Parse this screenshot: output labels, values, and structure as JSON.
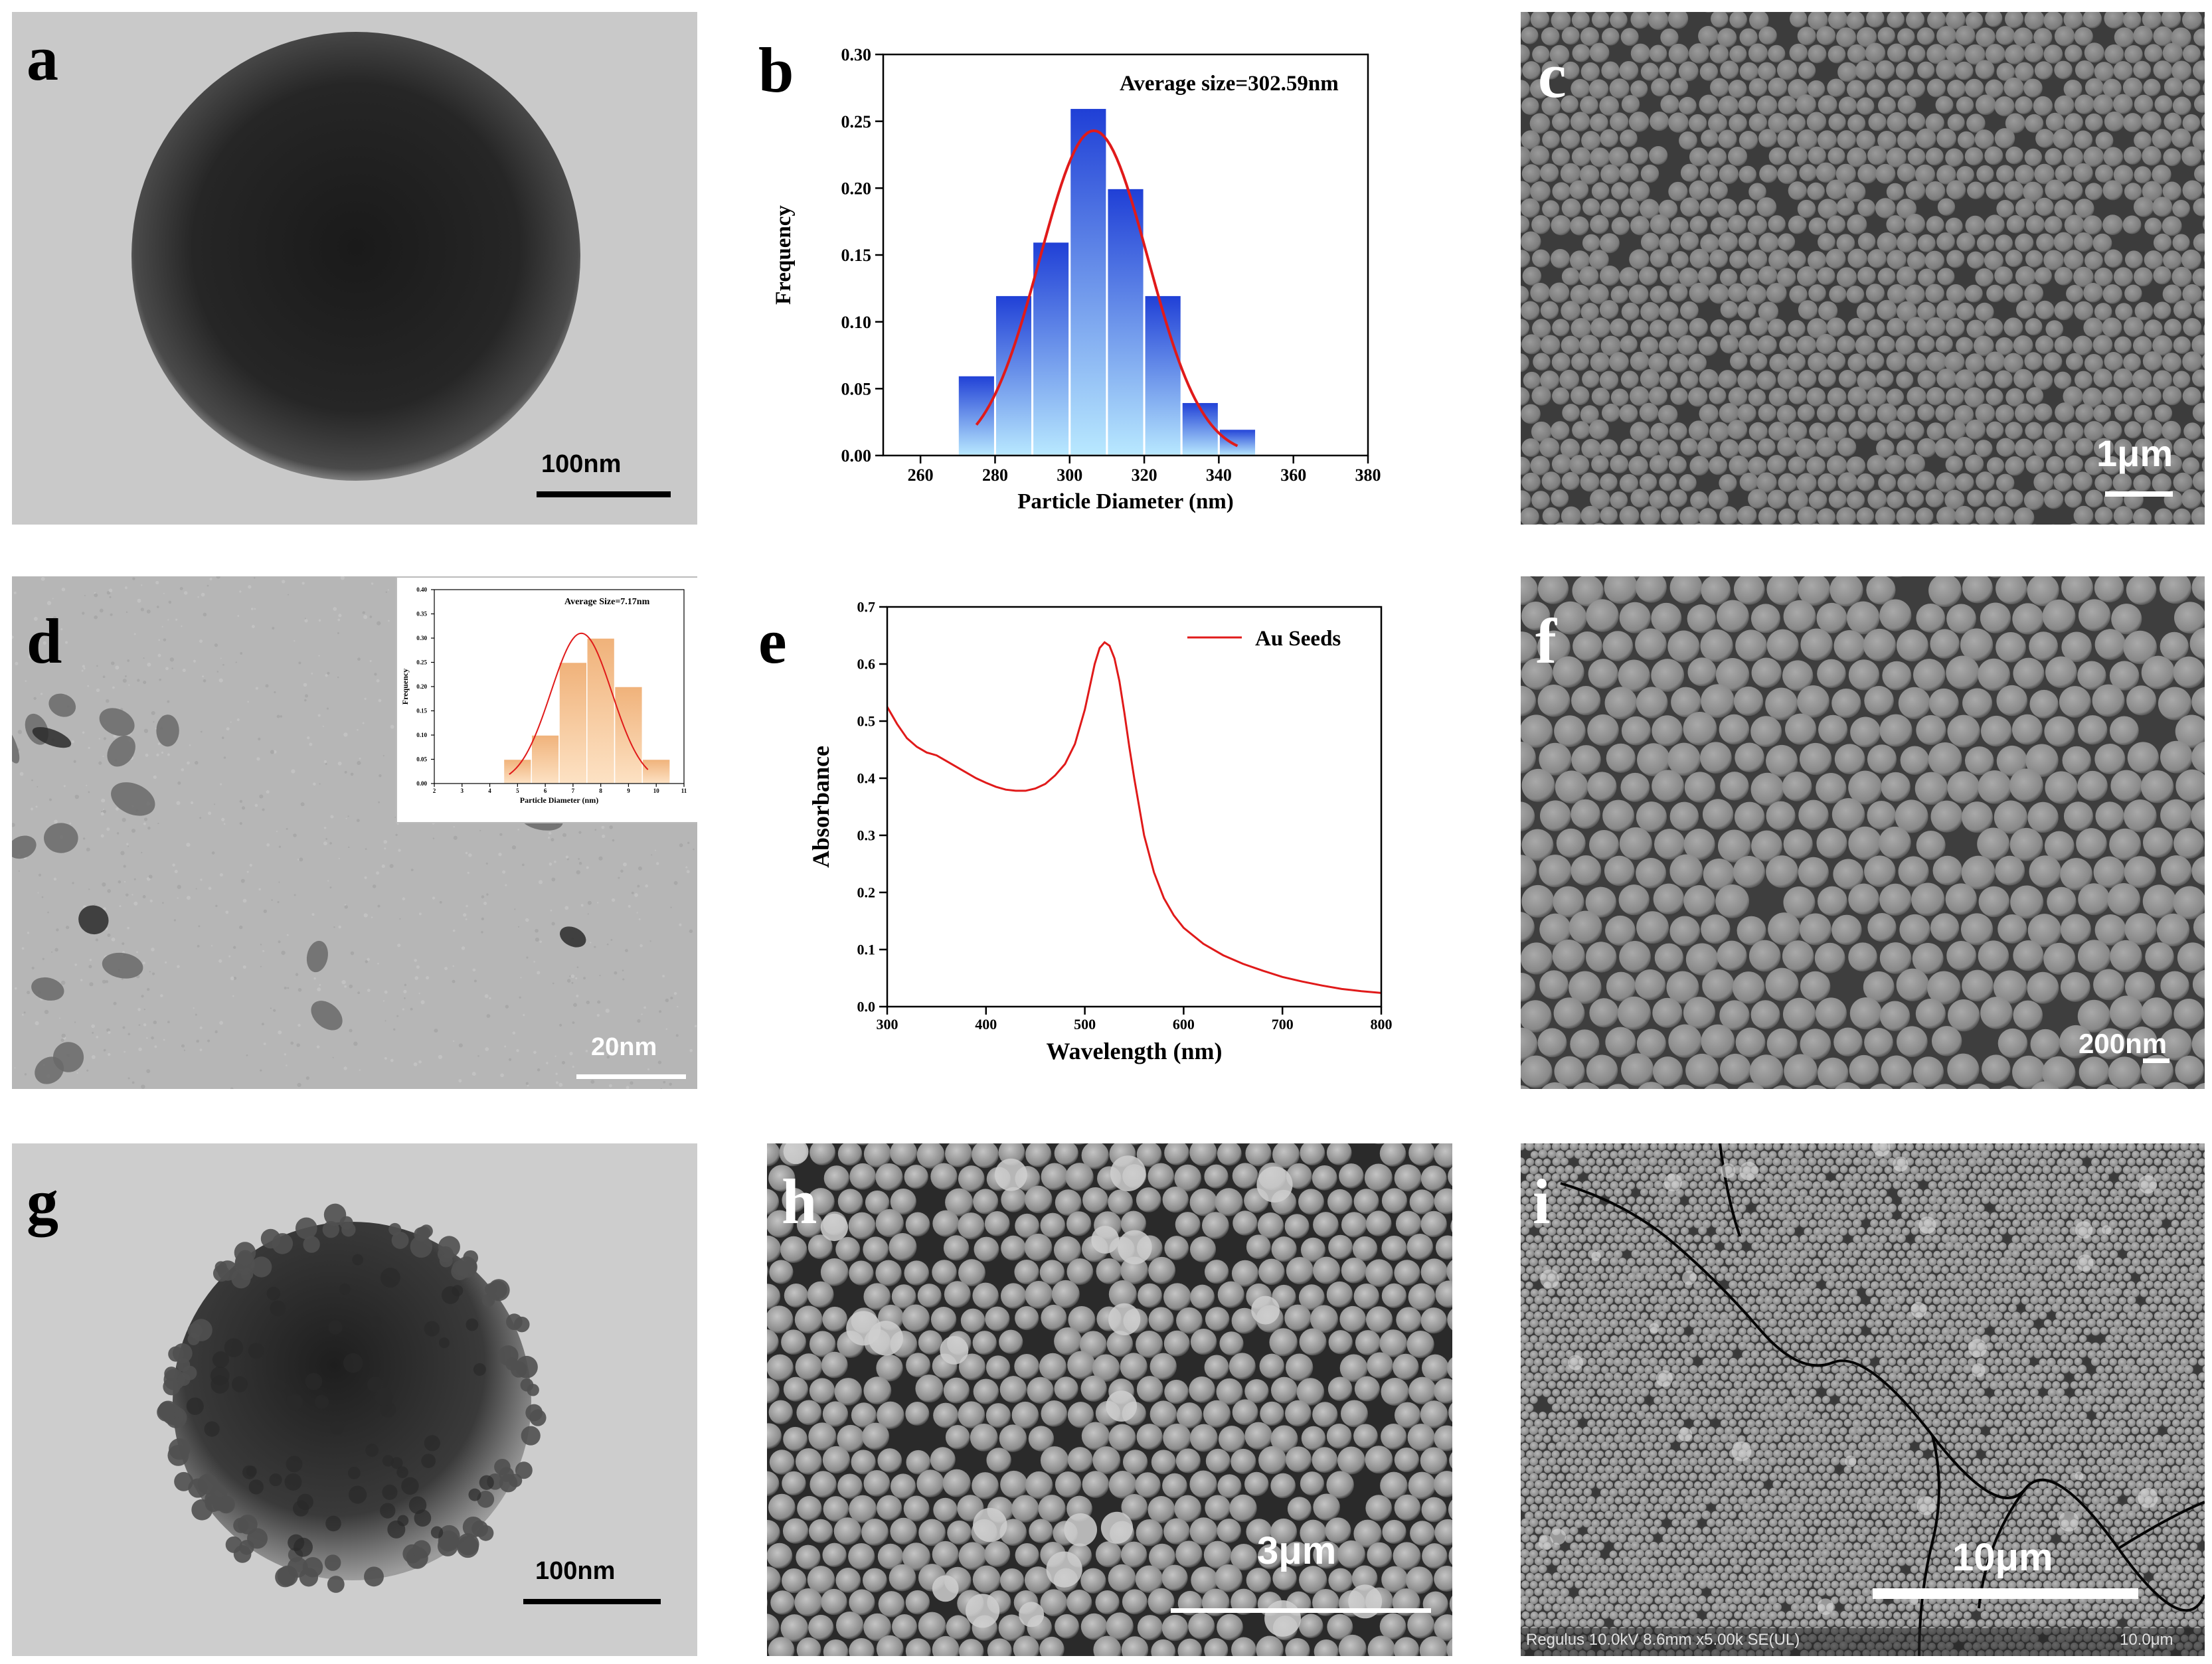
{
  "panels": {
    "a": {
      "label": "a",
      "scale": "100nm"
    },
    "b": {
      "label": "b"
    },
    "c": {
      "label": "c",
      "scale": "1μm"
    },
    "d": {
      "label": "d",
      "scale": "20nm"
    },
    "e": {
      "label": "e"
    },
    "f": {
      "label": "f",
      "scale": "200nm"
    },
    "g": {
      "label": "g",
      "scale": "100nm"
    },
    "h": {
      "label": "h",
      "scale": "3μm"
    },
    "i": {
      "label": "i",
      "scale": "10μm",
      "info_left": "Regulus 10.0kV 8.6mm x5.00k SE(UL)",
      "info_right": "10.0μm"
    }
  },
  "chart_data": [
    {
      "id": "b",
      "type": "bar",
      "xlabel": "Particle Diameter (nm)",
      "ylabel": "Frequency",
      "annotation": "Average size=302.59nm",
      "xlim": [
        250,
        380
      ],
      "ylim": [
        0,
        0.3
      ],
      "xticks": [
        260,
        280,
        300,
        320,
        340,
        360,
        380
      ],
      "yticks": [
        0.0,
        0.05,
        0.1,
        0.15,
        0.2,
        0.25,
        0.3
      ],
      "bin_width": 10,
      "bins": [
        275,
        285,
        295,
        305,
        315,
        325,
        335,
        345
      ],
      "values": [
        0.06,
        0.12,
        0.16,
        0.26,
        0.2,
        0.12,
        0.04,
        0.02
      ],
      "fit": {
        "type": "gaussian",
        "mean": 306.5,
        "sigma": 14.5,
        "amplitude": 0.243,
        "x_range": [
          275,
          345
        ]
      },
      "colors": {
        "bar_top": "#1f3fd6",
        "bar_bottom": "#b9e9ff",
        "fit": "#e01a1a"
      }
    },
    {
      "id": "d-inset",
      "type": "bar",
      "xlabel": "Particle Diameter (nm)",
      "ylabel": "Frequency",
      "annotation": "Average Size=7.17nm",
      "xlim": [
        2,
        11
      ],
      "ylim": [
        0,
        0.4
      ],
      "xticks": [
        2,
        3,
        4,
        5,
        6,
        7,
        8,
        9,
        10,
        11
      ],
      "yticks": [
        0.0,
        0.05,
        0.1,
        0.15,
        0.2,
        0.25,
        0.3,
        0.35,
        0.4
      ],
      "bin_width": 1,
      "bins": [
        5,
        6,
        7,
        8,
        9,
        10
      ],
      "values": [
        0.05,
        0.1,
        0.25,
        0.3,
        0.2,
        0.05
      ],
      "fit": {
        "type": "gaussian",
        "mean": 7.3,
        "sigma": 1.1,
        "amplitude": 0.31,
        "x_range": [
          4.7,
          9.7
        ]
      },
      "colors": {
        "bar_top": "#f0b27a",
        "bar_bottom": "#fde2c4",
        "fit": "#e01a1a"
      }
    },
    {
      "id": "e",
      "type": "line",
      "xlabel": "Wavelength (nm)",
      "ylabel": "Absorbance",
      "xlim": [
        300,
        800
      ],
      "ylim": [
        0.0,
        0.7
      ],
      "xticks": [
        300,
        400,
        500,
        600,
        700,
        800
      ],
      "yticks": [
        0.0,
        0.1,
        0.2,
        0.3,
        0.4,
        0.5,
        0.6,
        0.7
      ],
      "series": [
        {
          "name": "Au Seeds",
          "color": "#e01a1a",
          "x": [
            300,
            310,
            320,
            330,
            340,
            350,
            360,
            370,
            380,
            390,
            400,
            410,
            420,
            430,
            440,
            450,
            460,
            470,
            480,
            490,
            500,
            505,
            510,
            515,
            520,
            525,
            530,
            535,
            540,
            545,
            550,
            560,
            570,
            580,
            590,
            600,
            620,
            640,
            660,
            680,
            700,
            720,
            740,
            760,
            780,
            800
          ],
          "y": [
            0.525,
            0.495,
            0.47,
            0.455,
            0.445,
            0.44,
            0.43,
            0.42,
            0.41,
            0.4,
            0.392,
            0.385,
            0.38,
            0.378,
            0.378,
            0.382,
            0.39,
            0.405,
            0.425,
            0.46,
            0.52,
            0.56,
            0.6,
            0.628,
            0.638,
            0.632,
            0.61,
            0.57,
            0.515,
            0.455,
            0.4,
            0.3,
            0.235,
            0.19,
            0.16,
            0.138,
            0.11,
            0.09,
            0.075,
            0.063,
            0.052,
            0.044,
            0.037,
            0.031,
            0.027,
            0.024
          ]
        }
      ]
    }
  ]
}
